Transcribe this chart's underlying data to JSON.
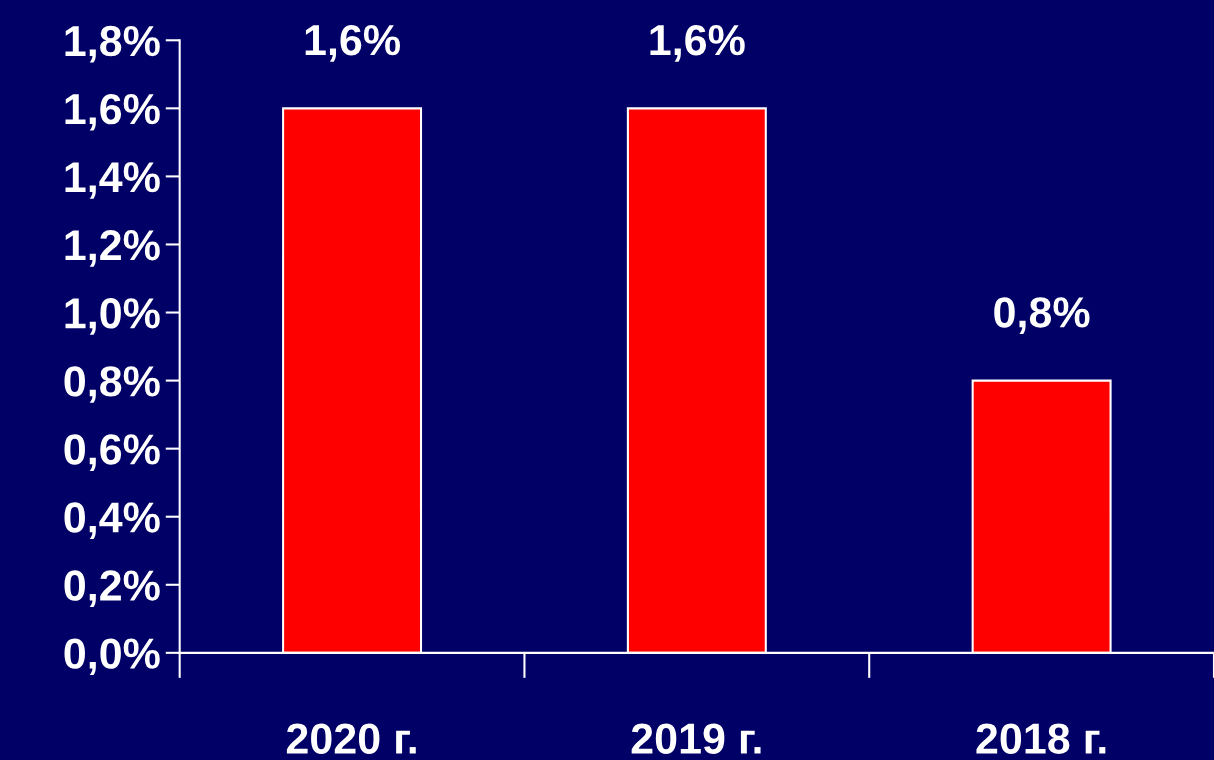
{
  "chart_data": {
    "type": "bar",
    "categories": [
      "2020 г.",
      "2019 г.",
      "2018 г."
    ],
    "series": [
      {
        "color": "#ff0000",
        "values": [
          1.6,
          1.6,
          0.8
        ],
        "value_labels": [
          "1,6%",
          "1,6%",
          "0,8%"
        ]
      }
    ],
    "ylim": [
      0,
      1.8
    ],
    "yticks": [
      {
        "value": 0,
        "label": "0,0%"
      },
      {
        "value": 0.2,
        "label": "0,2%"
      },
      {
        "value": 0.4,
        "label": "0,4%"
      },
      {
        "value": 0.6,
        "label": "0,6%"
      },
      {
        "value": 0.8,
        "label": "0,8%"
      },
      {
        "value": 1.0,
        "label": "1,0%"
      },
      {
        "value": 1.2,
        "label": "1,2%"
      },
      {
        "value": 1.4,
        "label": "1,4%"
      },
      {
        "value": 1.6,
        "label": "1,6%"
      },
      {
        "value": 1.8,
        "label": "1,8%"
      }
    ],
    "grid": false,
    "legend": false
  }
}
